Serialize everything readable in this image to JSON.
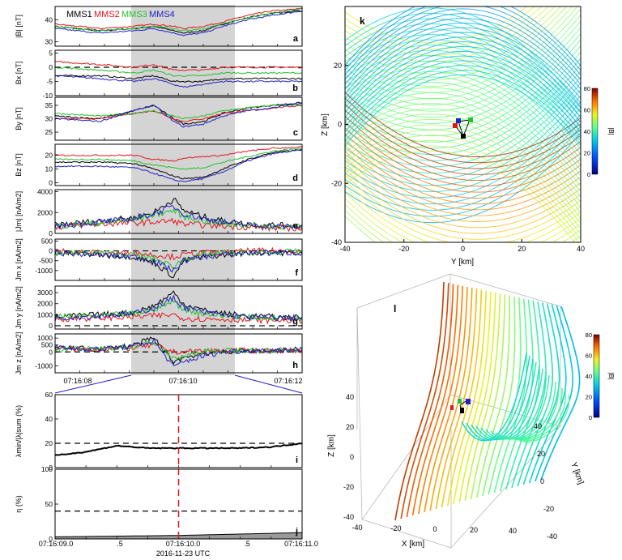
{
  "colors": {
    "mms1": "#000000",
    "mms2": "#e3151a",
    "mms3": "#22c12b",
    "mms4": "#2121c8",
    "shade": "#d4d4d4",
    "highlight": "#e3151a"
  },
  "legend": [
    "MMS1",
    "MMS2",
    "MMS3",
    "MMS4"
  ],
  "chart_data": [
    {
      "type": "line",
      "panel": "a",
      "ylabel": "|B| [nT]",
      "yticks": [
        "30",
        "40"
      ],
      "ylim": [
        28,
        46
      ],
      "x": [
        "07:16:07.6",
        "07:16:08.5",
        "07:16:09.2",
        "07:16:09.6",
        "07:16:10.0",
        "07:16:10.2",
        "07:16:10.6",
        "07:16:11.0",
        "07:16:11.5",
        "07:16:12.0",
        "07:16:12.6"
      ],
      "series": [
        {
          "name": "MMS1",
          "values": [
            37,
            35,
            36,
            37,
            35,
            34,
            35,
            38,
            41,
            43,
            44
          ]
        },
        {
          "name": "MMS2",
          "values": [
            38,
            36,
            37,
            38,
            37,
            36,
            37,
            39,
            42,
            44,
            45
          ]
        },
        {
          "name": "MMS3",
          "values": [
            37,
            35,
            36,
            37,
            36,
            35,
            36,
            38,
            41,
            43,
            45
          ]
        },
        {
          "name": "MMS4",
          "values": [
            36,
            34,
            35,
            36,
            34,
            33,
            34,
            37,
            40,
            42,
            44
          ]
        }
      ]
    },
    {
      "type": "line",
      "panel": "b",
      "ylabel": "Bx [nT]",
      "yticks": [
        "-10",
        "-5",
        "0",
        "5"
      ],
      "ylim": [
        -10,
        6
      ],
      "dashed_ref": 0,
      "x": [
        "07:16:07.6",
        "07:16:08.5",
        "07:16:09.2",
        "07:16:09.6",
        "07:16:10.0",
        "07:16:10.2",
        "07:16:10.6",
        "07:16:11.0",
        "07:16:11.5",
        "07:16:12.0",
        "07:16:12.6"
      ],
      "series": [
        {
          "name": "MMS1",
          "values": [
            -3,
            -3,
            -4,
            -3,
            -5,
            -5,
            -5,
            -4,
            -4,
            -4,
            -4
          ]
        },
        {
          "name": "MMS2",
          "values": [
            2,
            1,
            0,
            1,
            -1,
            -1,
            -1,
            0,
            0,
            0,
            0
          ]
        },
        {
          "name": "MMS3",
          "values": [
            0,
            -1,
            -2,
            -1,
            -3,
            -3,
            -3,
            -2,
            -2,
            -2,
            -2
          ]
        },
        {
          "name": "MMS4",
          "values": [
            -3,
            -4,
            -5,
            -4,
            -6,
            -7,
            -6,
            -5,
            -5,
            -5,
            -5
          ]
        }
      ]
    },
    {
      "type": "line",
      "panel": "c",
      "ylabel": "By [nT]",
      "yticks": [
        "25",
        "30",
        "35"
      ],
      "ylim": [
        22,
        38
      ],
      "x": [
        "07:16:07.6",
        "07:16:08.5",
        "07:16:09.2",
        "07:16:09.6",
        "07:16:10.0",
        "07:16:10.2",
        "07:16:10.6",
        "07:16:11.0",
        "07:16:11.5",
        "07:16:12.0",
        "07:16:12.6"
      ],
      "series": [
        {
          "name": "MMS1",
          "values": [
            31,
            30,
            33,
            35,
            30,
            28,
            29,
            32,
            34,
            35,
            36
          ]
        },
        {
          "name": "MMS2",
          "values": [
            30,
            30,
            32,
            33,
            30,
            29,
            30,
            32,
            33,
            34,
            35
          ]
        },
        {
          "name": "MMS3",
          "values": [
            32,
            31,
            32,
            33,
            31,
            30,
            31,
            33,
            34,
            35,
            35
          ]
        },
        {
          "name": "MMS4",
          "values": [
            30,
            29,
            33,
            35,
            29,
            27,
            28,
            31,
            33,
            34,
            36
          ]
        }
      ]
    },
    {
      "type": "line",
      "panel": "d",
      "ylabel": "Bz [nT]",
      "yticks": [
        "0",
        "10",
        "20"
      ],
      "ylim": [
        -2,
        28
      ],
      "x": [
        "07:16:07.6",
        "07:16:08.5",
        "07:16:09.2",
        "07:16:09.6",
        "07:16:10.0",
        "07:16:10.2",
        "07:16:10.6",
        "07:16:11.0",
        "07:16:11.5",
        "07:16:12.0",
        "07:16:12.6"
      ],
      "series": [
        {
          "name": "MMS1",
          "values": [
            15,
            15,
            14,
            10,
            5,
            3,
            4,
            10,
            17,
            22,
            24
          ]
        },
        {
          "name": "MMS2",
          "values": [
            20,
            20,
            20,
            17,
            16,
            18,
            19,
            20,
            23,
            25,
            26
          ]
        },
        {
          "name": "MMS3",
          "values": [
            17,
            17,
            16,
            13,
            11,
            10,
            11,
            15,
            19,
            23,
            25
          ]
        },
        {
          "name": "MMS4",
          "values": [
            12,
            12,
            11,
            7,
            2,
            1,
            3,
            8,
            16,
            21,
            24
          ]
        }
      ]
    },
    {
      "type": "line",
      "panel": "e",
      "ylabel": "|Jm| [nA/m2]",
      "yticks": [
        "0",
        "2000",
        "4000"
      ],
      "ylim": [
        0,
        4200
      ],
      "x": [
        "07:16:07.6",
        "07:16:08.5",
        "07:16:09.2",
        "07:16:09.6",
        "07:16:10.0",
        "07:16:10.2",
        "07:16:10.6",
        "07:16:11.0",
        "07:16:11.5",
        "07:16:12.0",
        "07:16:12.6"
      ],
      "series": [
        {
          "name": "MMS1",
          "values": [
            800,
            1200,
            1500,
            2000,
            3300,
            2200,
            1600,
            1200,
            900,
            800,
            700
          ]
        },
        {
          "name": "MMS2",
          "values": [
            600,
            900,
            1000,
            1100,
            1200,
            900,
            800,
            700,
            600,
            500,
            500
          ]
        },
        {
          "name": "MMS3",
          "values": [
            700,
            1000,
            1300,
            1800,
            2200,
            1600,
            1200,
            900,
            800,
            700,
            600
          ]
        },
        {
          "name": "MMS4",
          "values": [
            700,
            1100,
            1400,
            1900,
            2600,
            1900,
            1400,
            1100,
            800,
            700,
            600
          ]
        }
      ]
    },
    {
      "type": "line",
      "panel": "f",
      "ylabel": "Jm x [nA/m2]",
      "yticks": [
        "-1000",
        "-500",
        "0",
        "500"
      ],
      "ylim": [
        -1500,
        600
      ],
      "dashed_ref": 0,
      "x": [
        "07:16:07.6",
        "07:16:08.5",
        "07:16:09.2",
        "07:16:09.6",
        "07:16:10.0",
        "07:16:10.2",
        "07:16:10.6",
        "07:16:11.0",
        "07:16:11.5",
        "07:16:12.0",
        "07:16:12.6"
      ],
      "series": [
        {
          "name": "MMS1",
          "values": [
            -100,
            -200,
            -300,
            -600,
            -1300,
            -500,
            -300,
            -200,
            -100,
            -100,
            -100
          ]
        },
        {
          "name": "MMS2",
          "values": [
            0,
            -100,
            -100,
            -200,
            -300,
            -200,
            -100,
            -100,
            0,
            0,
            0
          ]
        },
        {
          "name": "MMS3",
          "values": [
            -100,
            -100,
            -200,
            -400,
            -800,
            -400,
            -200,
            -100,
            -100,
            -100,
            0
          ]
        },
        {
          "name": "MMS4",
          "values": [
            -100,
            -200,
            -300,
            -500,
            -1000,
            -500,
            -300,
            -200,
            -100,
            -100,
            -100
          ]
        }
      ]
    },
    {
      "type": "line",
      "panel": "g",
      "ylabel": "Jm y [nA/m2]",
      "yticks": [
        "0",
        "1000",
        "2000",
        "3000"
      ],
      "ylim": [
        -300,
        3600
      ],
      "dashed_ref": 0,
      "x": [
        "07:16:07.6",
        "07:16:08.5",
        "07:16:09.2",
        "07:16:09.6",
        "07:16:10.0",
        "07:16:10.2",
        "07:16:10.6",
        "07:16:11.0",
        "07:16:11.5",
        "07:16:12.0",
        "07:16:12.6"
      ],
      "series": [
        {
          "name": "MMS1",
          "values": [
            800,
            1000,
            1200,
            1800,
            3000,
            2000,
            1400,
            1100,
            900,
            800,
            700
          ]
        },
        {
          "name": "MMS2",
          "values": [
            600,
            700,
            800,
            900,
            1000,
            700,
            600,
            600,
            500,
            500,
            500
          ]
        },
        {
          "name": "MMS3",
          "values": [
            800,
            900,
            1100,
            1500,
            2200,
            1500,
            1100,
            900,
            800,
            700,
            700
          ]
        },
        {
          "name": "MMS4",
          "values": [
            700,
            900,
            1100,
            1600,
            2500,
            1700,
            1200,
            1000,
            800,
            700,
            700
          ]
        }
      ]
    },
    {
      "type": "line",
      "panel": "h",
      "ylabel": "Jm z [nA/m2]",
      "yticks": [
        "-1000",
        "0",
        "500",
        "1000"
      ],
      "ylim": [
        -1500,
        1300
      ],
      "dashed_ref": 0,
      "x": [
        "07:16:07.6",
        "07:16:08.5",
        "07:16:09.2",
        "07:16:09.6",
        "07:16:10.0",
        "07:16:10.2",
        "07:16:10.6",
        "07:16:11.0",
        "07:16:11.5",
        "07:16:12.0",
        "07:16:12.6"
      ],
      "series": [
        {
          "name": "MMS1",
          "values": [
            300,
            200,
            500,
            1000,
            -700,
            -400,
            -100,
            0,
            100,
            100,
            200
          ]
        },
        {
          "name": "MMS2",
          "values": [
            200,
            200,
            300,
            500,
            0,
            0,
            100,
            100,
            100,
            100,
            100
          ]
        },
        {
          "name": "MMS3",
          "values": [
            200,
            200,
            400,
            700,
            -500,
            -300,
            0,
            100,
            100,
            100,
            200
          ]
        },
        {
          "name": "MMS4",
          "values": [
            300,
            200,
            400,
            800,
            -1100,
            -700,
            -300,
            0,
            100,
            100,
            200
          ]
        }
      ]
    },
    {
      "type": "line",
      "panel": "i",
      "ylabel": "λmin/|λ|sum (%)",
      "yticks": [
        "0",
        "20",
        "40",
        "60"
      ],
      "ylim": [
        0,
        60
      ],
      "dashed_ref": 20,
      "x": [
        "07:16:09.0",
        "07:16:09.25",
        "07:16:09.5",
        "07:16:09.75",
        "07:16:10.0",
        "07:16:10.25",
        "07:16:10.5",
        "07:16:10.75",
        "07:16:11.0"
      ],
      "series": [
        {
          "name": "",
          "values": [
            10,
            13,
            18,
            16,
            16,
            16,
            16,
            17,
            20
          ]
        }
      ]
    },
    {
      "type": "area",
      "panel": "j",
      "ylabel": "η (%)",
      "yticks": [
        "0",
        "50",
        "100"
      ],
      "ylim": [
        0,
        100
      ],
      "dashed_ref": 40,
      "x": [
        "07:16:09.0",
        "07:16:09.5",
        "07:16:10.0",
        "07:16:10.5",
        "07:16:11.0"
      ],
      "series": [
        {
          "name": "",
          "values": [
            3,
            4,
            5,
            7,
            9
          ]
        }
      ]
    },
    {
      "type": "field-lines",
      "panel": "k",
      "xlabel": "Y [km]",
      "ylabel": "Z [km]",
      "xticks": [
        "-40",
        "-20",
        "0",
        "20",
        "40"
      ],
      "yticks": [
        "-40",
        "-20",
        "0",
        "20"
      ],
      "xlim": [
        -40,
        40
      ],
      "ylim": [
        -40,
        40
      ],
      "colorbar": {
        "label": "|B|",
        "ticks": [
          "0",
          "20",
          "40",
          "60",
          "80"
        ],
        "range": [
          0,
          80
        ]
      }
    },
    {
      "type": "field-lines-3d",
      "panel": "l",
      "xlabel": "X [km]",
      "ylabel": "Y [km]",
      "zlabel": "Z [km]",
      "xticks": [
        "-40",
        "-20",
        "0",
        "20",
        "40"
      ],
      "yticks": [
        "-40",
        "-20",
        "0",
        "20",
        "40"
      ],
      "zticks": [
        "-40",
        "-20",
        "0",
        "20",
        "40"
      ],
      "colorbar": {
        "label": "|B|",
        "ticks": [
          "0",
          "20",
          "40",
          "60",
          "80"
        ],
        "range": [
          0,
          80
        ]
      }
    }
  ],
  "time_axis_top": {
    "ticks": [
      "07:16:08",
      "07:16:10",
      "07:16:12"
    ]
  },
  "time_axis_bottom": {
    "ticks": [
      "07:16:09.0",
      ".5",
      "07:16:10.0",
      ".5",
      "07:16:11.0"
    ],
    "date_label": "2016-11-23 UTC"
  }
}
